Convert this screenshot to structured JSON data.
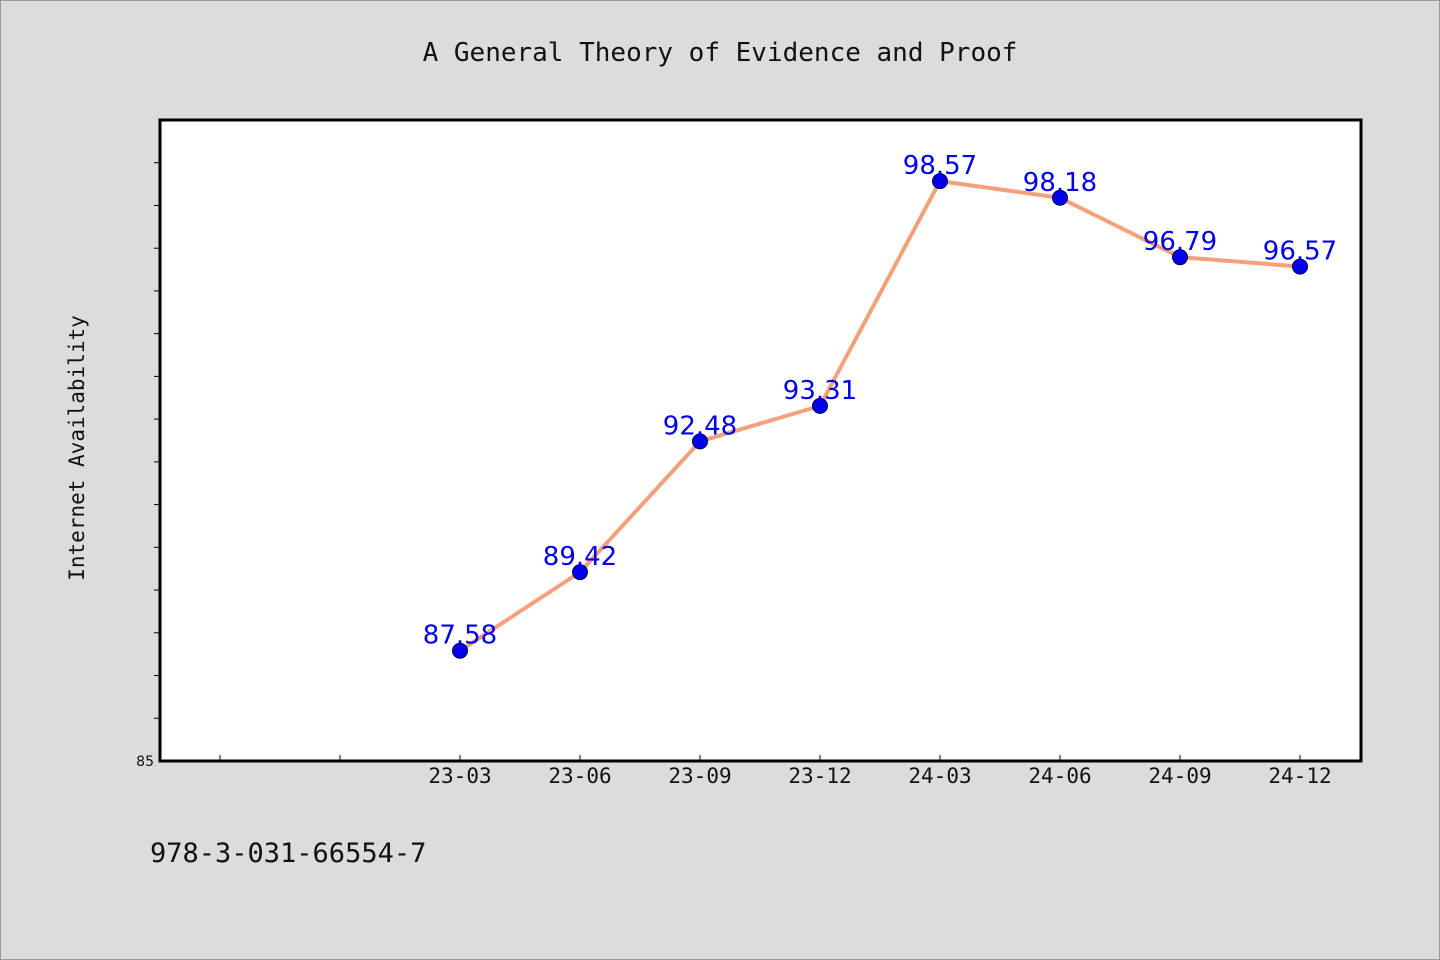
{
  "chart_data": {
    "type": "line",
    "title": "A General Theory of Evidence and Proof",
    "xlabel": "",
    "ylabel": "Internet Availability",
    "categories": [
      "23-03",
      "23-06",
      "23-09",
      "23-12",
      "24-03",
      "24-06",
      "24-09",
      "24-12"
    ],
    "series": [
      {
        "values": [
          87.58,
          89.42,
          92.48,
          93.31,
          98.57,
          98.18,
          96.79,
          96.57
        ]
      }
    ],
    "data_labels": [
      "87.58",
      "89.42",
      "92.48",
      "93.31",
      "98.57",
      "98.18",
      "96.79",
      "96.57"
    ],
    "ylim": [
      85,
      100
    ],
    "ytick_labels": [
      "85"
    ],
    "grid": false,
    "colors": {
      "line": "#f4a07a",
      "marker": "#0000ee",
      "label": "#0000ee",
      "background": "#dcdcdc",
      "plot": "#ffffff"
    }
  },
  "footer_text": "978-3-031-66554-7"
}
